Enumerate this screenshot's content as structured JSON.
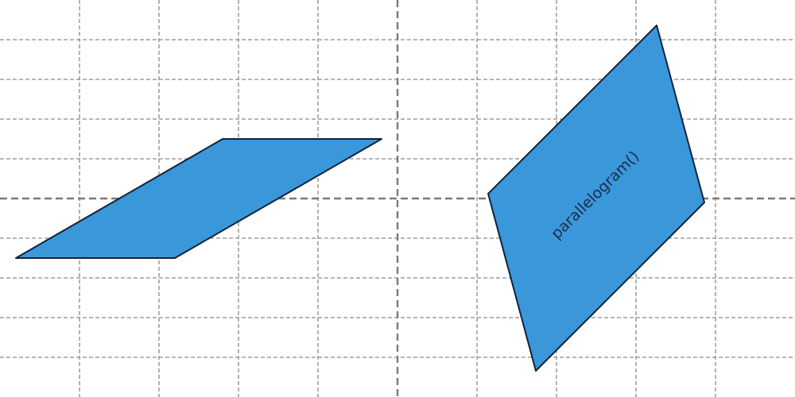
{
  "colors": {
    "fill": "#3a97da",
    "stroke": "#10233a",
    "grid": "#8a8a8a",
    "axis": "#7a7a7a",
    "label": "#1d2e45"
  },
  "shapes": [
    {
      "kind": "parallelogram",
      "label": ""
    },
    {
      "kind": "parallelogram",
      "label": "parallelogram()"
    }
  ]
}
